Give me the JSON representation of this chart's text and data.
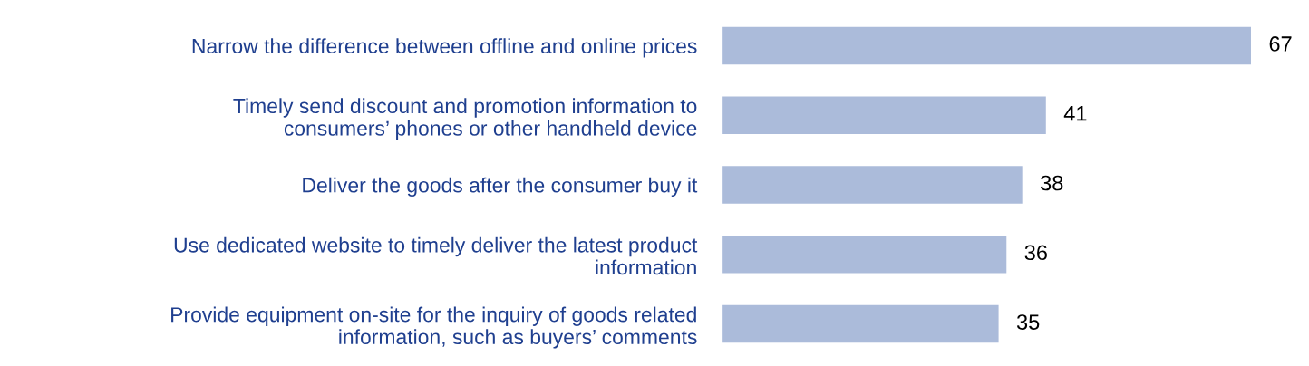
{
  "chart_data": {
    "type": "bar",
    "orientation": "horizontal",
    "categories": [
      "Narrow the difference between offline and online prices",
      "Timely send discount and promotion information to\nconsumers’ phones or other handheld device",
      "Deliver the goods after the consumer buy it",
      "Use dedicated website to timely deliver the latest product\ninformation",
      "Provide equipment on-site for the inquiry of goods related\ninformation, such as buyers’ comments"
    ],
    "values": [
      67,
      41,
      38,
      36,
      35
    ],
    "color": "#abbbda",
    "data_labels": true,
    "grid": false,
    "legend": false
  }
}
